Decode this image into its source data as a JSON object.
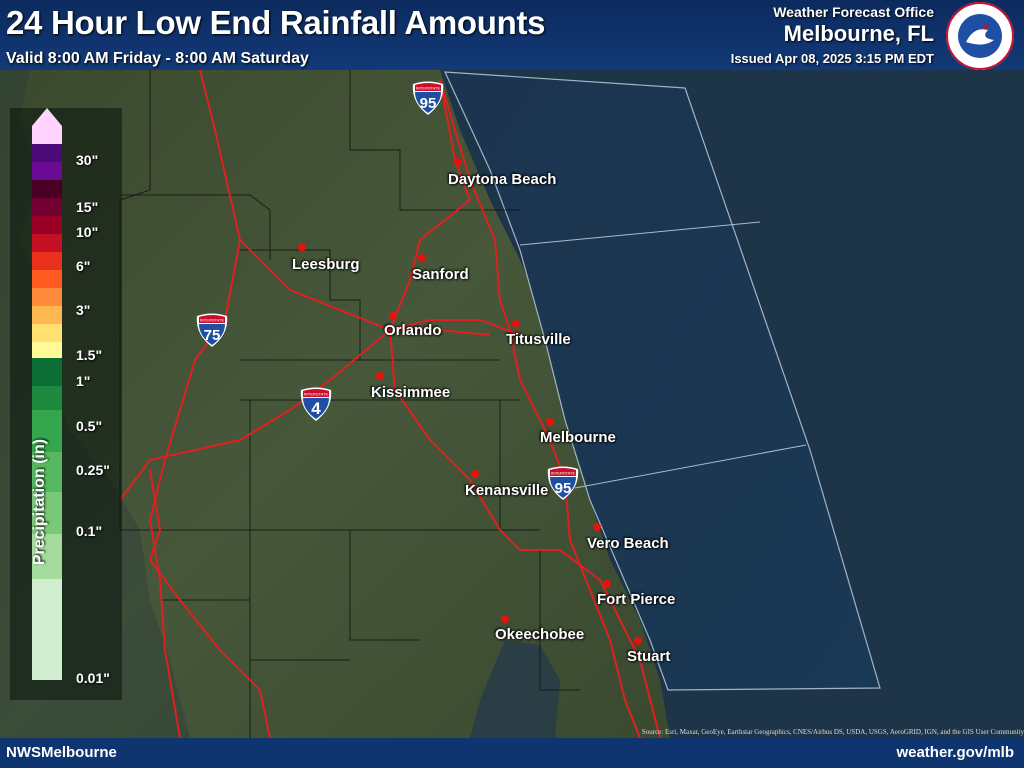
{
  "header": {
    "title": "24 Hour Low End Rainfall Amounts",
    "valid": "Valid 8:00 AM Friday - 8:00 AM Saturday",
    "office_label": "Weather Forecast Office",
    "office_name": "Melbourne, FL",
    "issued": "Issued Apr 08, 2025 3:15 PM EDT",
    "logo_text": "NATIONAL WEATHER SERVICE"
  },
  "legend": {
    "title": "Precipitation (in)",
    "ticks": [
      "30\"",
      "15\"",
      "10\"",
      "6\"",
      "3\"",
      "1.5\"",
      "1\"",
      "0.5\"",
      "0.25\"",
      "0.1\"",
      "0.01\""
    ],
    "colors": [
      "#ffd5ff",
      "#ffd5ff",
      "#4b0a78",
      "#6b0a94",
      "#4a0024",
      "#720032",
      "#9a0026",
      "#c41024",
      "#e8301c",
      "#ff5a20",
      "#ff8a3c",
      "#ffb850",
      "#ffe070",
      "#fffa96",
      "#0c6e34",
      "#1e8a40",
      "#33a64e",
      "#56b860",
      "#7ac87a",
      "#a4dc9e",
      "#d2eed0"
    ]
  },
  "cities": [
    {
      "name": "Daytona Beach"
    },
    {
      "name": "Leesburg"
    },
    {
      "name": "Sanford"
    },
    {
      "name": "Orlando"
    },
    {
      "name": "Titusville"
    },
    {
      "name": "Kissimmee"
    },
    {
      "name": "Melbourne"
    },
    {
      "name": "Kenansville"
    },
    {
      "name": "Vero Beach"
    },
    {
      "name": "Fort Pierce"
    },
    {
      "name": "Okeechobee"
    },
    {
      "name": "Stuart"
    }
  ],
  "shields": [
    {
      "name": "interstate-95-north",
      "number": "95",
      "label": "INTERSTATE"
    },
    {
      "name": "interstate-75",
      "number": "75",
      "label": "INTERSTATE"
    },
    {
      "name": "interstate-4",
      "number": "4",
      "label": "INTERSTATE"
    },
    {
      "name": "interstate-95-south",
      "number": "95",
      "label": "INTERSTATE"
    }
  ],
  "footer": {
    "left": "NWSMelbourne",
    "right": "weather.gov/mlb",
    "source": "Source: Esri, Maxar, GeoEye, Earthstar Geographics, CNES/Airbus DS, USDA, USGS, AeroGRID, IGN, and the GIS User Community"
  },
  "colors": {
    "header_bg": "#123a78",
    "road": "#e02020",
    "city_dot": "#e8120c",
    "ocean": "#1d3a52"
  }
}
